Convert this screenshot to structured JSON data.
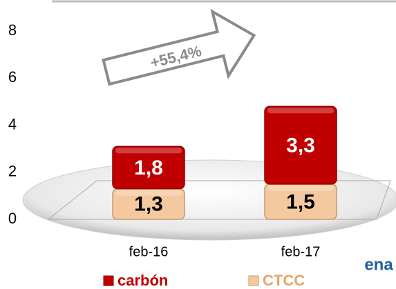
{
  "chart_data": {
    "type": "bar",
    "stacked": true,
    "categories": [
      "feb-16",
      "feb-17"
    ],
    "series": [
      {
        "name": "CTCC",
        "color": "#f5c9a0",
        "values": [
          1.3,
          1.5
        ],
        "value_labels": [
          "1,3",
          "1,5"
        ]
      },
      {
        "name": "carbón",
        "color": "#c00000",
        "values": [
          1.8,
          3.3
        ],
        "value_labels": [
          "1,8",
          "3,3"
        ]
      }
    ],
    "ylim": [
      0,
      8
    ],
    "yticks": [
      0,
      2,
      4,
      6,
      8
    ],
    "annotation": "+55,4%",
    "logo": "ena"
  }
}
